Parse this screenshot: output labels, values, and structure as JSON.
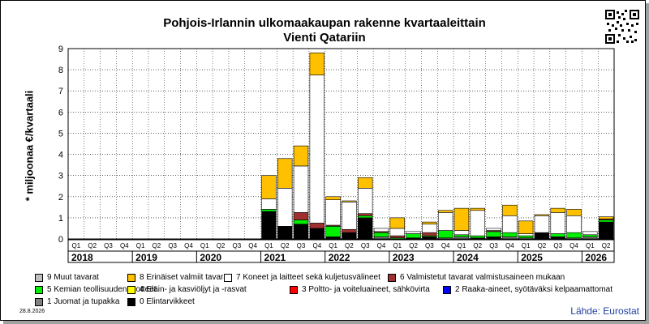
{
  "header": {
    "title": "Pohjois-Irlannin ulkomaakaupan rakenne kvartaaleittain",
    "subtitle": "Vienti Qatariin"
  },
  "footer": {
    "date": "28.8.2026",
    "source": "Lähde: Eurostat"
  },
  "chart_data": {
    "type": "bar",
    "stacked": true,
    "ylabel": "* miljoonaa €/kvartaali",
    "ylim": [
      0,
      9
    ],
    "yticks": [
      0,
      1,
      2,
      3,
      4,
      5,
      6,
      7,
      8,
      9
    ],
    "grid": true,
    "legend_position": "bottom",
    "years": [
      "2018",
      "2019",
      "2020",
      "2021",
      "2022",
      "2023",
      "2024",
      "2025",
      "2026"
    ],
    "categories": [
      "2018 Q1",
      "2018 Q2",
      "2018 Q3",
      "2018 Q4",
      "2019 Q1",
      "2019 Q2",
      "2019 Q3",
      "2019 Q4",
      "2020 Q1",
      "2020 Q2",
      "2020 Q3",
      "2020 Q4",
      "2021 Q1",
      "2021 Q2",
      "2021 Q3",
      "2021 Q4",
      "2022 Q1",
      "2022 Q2",
      "2022 Q3",
      "2022 Q4",
      "2023 Q1",
      "2023 Q2",
      "2023 Q3",
      "2023 Q4",
      "2024 Q1",
      "2024 Q2",
      "2024 Q3",
      "2024 Q4",
      "2025 Q1",
      "2025 Q2",
      "2025 Q3",
      "2025 Q4",
      "2026 Q1",
      "2026 Q2"
    ],
    "quarter_labels": [
      "Q1",
      "Q2",
      "Q3",
      "Q4",
      "Q1",
      "Q2",
      "Q3",
      "Q4",
      "Q1",
      "Q2",
      "Q3",
      "Q4",
      "Q1",
      "Q2",
      "Q3",
      "Q4",
      "Q1",
      "Q2",
      "Q3",
      "Q4",
      "Q1",
      "Q2",
      "Q3",
      "Q4",
      "Q1",
      "Q2",
      "Q3",
      "Q4",
      "Q1",
      "Q2",
      "Q3",
      "Q4",
      "Q1",
      "Q2"
    ],
    "series": [
      {
        "name": "0 Elintarvikkeet",
        "color": "#000000",
        "values": [
          0,
          0,
          0,
          0,
          0,
          0,
          0,
          0,
          0,
          0,
          0,
          0,
          1.3,
          0.6,
          0.7,
          0.5,
          0.1,
          0.3,
          1.0,
          0,
          0,
          0.05,
          0.1,
          0,
          0,
          0.05,
          0.1,
          0,
          0,
          0.3,
          0.1,
          0,
          0,
          0.8
        ]
      },
      {
        "name": "1 Juomat ja tupakka",
        "color": "#808080",
        "values": [
          0,
          0,
          0,
          0,
          0,
          0,
          0,
          0,
          0,
          0,
          0,
          0,
          0,
          0,
          0,
          0,
          0,
          0,
          0,
          0.1,
          0,
          0,
          0,
          0.05,
          0.1,
          0,
          0,
          0.1,
          0.05,
          0,
          0,
          0.05,
          0.1,
          0
        ]
      },
      {
        "name": "2 Raaka-aineet, syötäväksi kelpaamattomat",
        "color": "#0000ff",
        "values": [
          0,
          0,
          0,
          0,
          0,
          0,
          0,
          0,
          0,
          0,
          0,
          0,
          0,
          0,
          0,
          0,
          0,
          0,
          0,
          0,
          0,
          0,
          0,
          0,
          0,
          0,
          0,
          0,
          0,
          0,
          0,
          0,
          0,
          0
        ]
      },
      {
        "name": "3 Poltto- ja voiteluaineet, sähkövirta",
        "color": "#ff0000",
        "values": [
          0,
          0,
          0,
          0,
          0,
          0,
          0,
          0,
          0,
          0,
          0,
          0,
          0,
          0,
          0,
          0,
          0,
          0,
          0,
          0,
          0,
          0,
          0,
          0,
          0,
          0,
          0,
          0,
          0,
          0,
          0,
          0,
          0,
          0
        ]
      },
      {
        "name": "4 Eläin- ja kasviöljyt ja -rasvat",
        "color": "#ffff00",
        "values": [
          0,
          0,
          0,
          0,
          0,
          0,
          0,
          0,
          0,
          0,
          0,
          0,
          0,
          0,
          0,
          0,
          0,
          0,
          0,
          0,
          0,
          0,
          0,
          0,
          0,
          0,
          0,
          0,
          0,
          0,
          0,
          0,
          0,
          0
        ]
      },
      {
        "name": "5 Kemian teollisuuden tuotteet",
        "color": "#00ee00",
        "values": [
          0,
          0,
          0,
          0,
          0,
          0,
          0,
          0,
          0,
          0,
          0,
          0,
          0.1,
          0,
          0.2,
          0,
          0.5,
          0,
          0.1,
          0.2,
          0.05,
          0.2,
          0.05,
          0.35,
          0.1,
          0.1,
          0.25,
          0.2,
          0.1,
          0,
          0.15,
          0.25,
          0.1,
          0.1
        ]
      },
      {
        "name": "6 Valmistetut tavarat valmistusaineen mukaan",
        "color": "#a03030",
        "values": [
          0,
          0,
          0,
          0,
          0,
          0,
          0,
          0,
          0,
          0,
          0,
          0,
          0,
          0,
          0.35,
          0.25,
          0.05,
          0.15,
          0.1,
          0.05,
          0.1,
          0,
          0.15,
          0,
          0,
          0,
          0.05,
          0,
          0,
          0,
          0,
          0,
          0,
          0.05
        ]
      },
      {
        "name": "7 Koneet ja laitteet sekä kuljetusvälineet",
        "color": "#ffffff",
        "values": [
          0,
          0,
          0,
          0,
          0,
          0,
          0,
          0,
          0,
          0,
          0,
          0,
          0.5,
          1.8,
          2.2,
          7.0,
          1.2,
          1.3,
          1.2,
          0.15,
          0.35,
          0.1,
          0.4,
          0.85,
          0.2,
          1.2,
          0.1,
          0.8,
          0.1,
          0.8,
          1.0,
          0.8,
          0.15,
          0
        ]
      },
      {
        "name": "8 Erinäiset valmiit tavarat",
        "color": "#ffc000",
        "values": [
          0,
          0,
          0,
          0,
          0,
          0,
          0,
          0,
          0,
          0,
          0,
          0,
          1.1,
          1.4,
          0.95,
          1.05,
          0.15,
          0.05,
          0.5,
          0,
          0.5,
          0,
          0.1,
          0.1,
          1.05,
          0.1,
          0,
          0.5,
          0.6,
          0.05,
          0.2,
          0.3,
          0,
          0.1
        ]
      },
      {
        "name": "9 Muut tavarat",
        "color": "#c0c0c0",
        "values": [
          0,
          0,
          0,
          0,
          0,
          0,
          0,
          0,
          0,
          0,
          0,
          0,
          0,
          0,
          0,
          0,
          0,
          0,
          0,
          0,
          0,
          0,
          0,
          0,
          0,
          0,
          0,
          0,
          0,
          0,
          0,
          0,
          0,
          0
        ]
      }
    ]
  }
}
